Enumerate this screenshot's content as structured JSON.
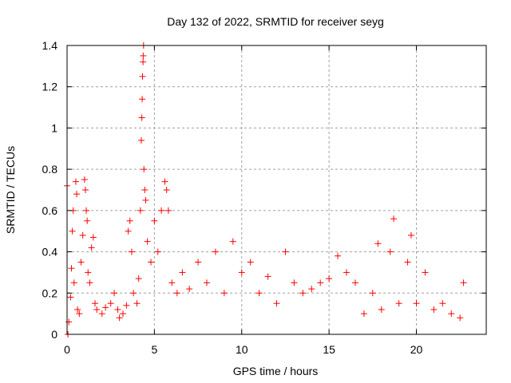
{
  "chart_data": {
    "type": "scatter",
    "title": "Day 132 of 2022, SRMTID for receiver seyg",
    "xlabel": "GPS time / hours",
    "ylabel": "SRMTID / TECUs",
    "xlim": [
      0,
      24
    ],
    "ylim": [
      0,
      1.4
    ],
    "x_ticks": [
      0,
      5,
      10,
      15,
      20
    ],
    "x_tick_labels": [
      "0",
      "5",
      "10",
      "15",
      "20"
    ],
    "y_ticks": [
      0,
      0.2,
      0.4,
      0.6,
      0.8,
      1,
      1.2,
      1.4
    ],
    "y_tick_labels": [
      "0",
      "0.2",
      "0.4",
      "0.6",
      "0.8",
      "1",
      "1.2",
      "1.4"
    ],
    "grid": true,
    "marker": "+",
    "color": "#ff0000",
    "series": [
      {
        "name": "SRMTID",
        "points": [
          [
            0.0,
            0.72
          ],
          [
            0.05,
            0.0
          ],
          [
            0.1,
            0.06
          ],
          [
            0.2,
            0.18
          ],
          [
            0.25,
            0.32
          ],
          [
            0.3,
            0.5
          ],
          [
            0.35,
            0.6
          ],
          [
            0.4,
            0.25
          ],
          [
            0.5,
            0.74
          ],
          [
            0.55,
            0.68
          ],
          [
            0.6,
            0.12
          ],
          [
            0.7,
            0.1
          ],
          [
            0.8,
            0.35
          ],
          [
            0.9,
            0.48
          ],
          [
            1.0,
            0.75
          ],
          [
            1.05,
            0.7
          ],
          [
            1.1,
            0.6
          ],
          [
            1.15,
            0.55
          ],
          [
            1.2,
            0.3
          ],
          [
            1.3,
            0.25
          ],
          [
            1.4,
            0.42
          ],
          [
            1.5,
            0.47
          ],
          [
            1.6,
            0.15
          ],
          [
            1.7,
            0.12
          ],
          [
            2.0,
            0.1
          ],
          [
            2.2,
            0.13
          ],
          [
            2.5,
            0.15
          ],
          [
            2.7,
            0.2
          ],
          [
            2.9,
            0.12
          ],
          [
            3.0,
            0.08
          ],
          [
            3.2,
            0.1
          ],
          [
            3.4,
            0.14
          ],
          [
            3.5,
            0.5
          ],
          [
            3.6,
            0.55
          ],
          [
            3.7,
            0.4
          ],
          [
            3.8,
            0.2
          ],
          [
            4.0,
            0.15
          ],
          [
            4.1,
            0.27
          ],
          [
            4.2,
            0.6
          ],
          [
            4.25,
            0.94
          ],
          [
            4.28,
            1.05
          ],
          [
            4.3,
            1.14
          ],
          [
            4.32,
            1.25
          ],
          [
            4.35,
            1.32
          ],
          [
            4.36,
            1.35
          ],
          [
            4.38,
            1.4
          ],
          [
            4.4,
            0.8
          ],
          [
            4.45,
            0.7
          ],
          [
            4.5,
            0.65
          ],
          [
            4.6,
            0.45
          ],
          [
            4.8,
            0.35
          ],
          [
            5.0,
            0.55
          ],
          [
            5.2,
            0.4
          ],
          [
            5.4,
            0.6
          ],
          [
            5.6,
            0.74
          ],
          [
            5.7,
            0.7
          ],
          [
            5.8,
            0.6
          ],
          [
            6.0,
            0.25
          ],
          [
            6.3,
            0.2
          ],
          [
            6.6,
            0.3
          ],
          [
            7.0,
            0.22
          ],
          [
            7.5,
            0.35
          ],
          [
            8.0,
            0.25
          ],
          [
            8.5,
            0.4
          ],
          [
            9.0,
            0.2
          ],
          [
            9.5,
            0.45
          ],
          [
            10.0,
            0.3
          ],
          [
            10.5,
            0.35
          ],
          [
            11.0,
            0.2
          ],
          [
            11.5,
            0.28
          ],
          [
            12.0,
            0.15
          ],
          [
            12.5,
            0.4
          ],
          [
            13.0,
            0.25
          ],
          [
            13.5,
            0.2
          ],
          [
            14.0,
            0.22
          ],
          [
            14.5,
            0.25
          ],
          [
            15.0,
            0.27
          ],
          [
            15.5,
            0.38
          ],
          [
            16.0,
            0.3
          ],
          [
            16.5,
            0.25
          ],
          [
            17.0,
            0.1
          ],
          [
            17.5,
            0.2
          ],
          [
            17.8,
            0.44
          ],
          [
            18.0,
            0.12
          ],
          [
            18.5,
            0.4
          ],
          [
            18.7,
            0.56
          ],
          [
            19.0,
            0.15
          ],
          [
            19.5,
            0.35
          ],
          [
            19.7,
            0.48
          ],
          [
            20.0,
            0.15
          ],
          [
            20.5,
            0.3
          ],
          [
            21.0,
            0.12
          ],
          [
            21.5,
            0.15
          ],
          [
            22.0,
            0.1
          ],
          [
            22.5,
            0.08
          ],
          [
            22.7,
            0.25
          ]
        ]
      }
    ]
  }
}
